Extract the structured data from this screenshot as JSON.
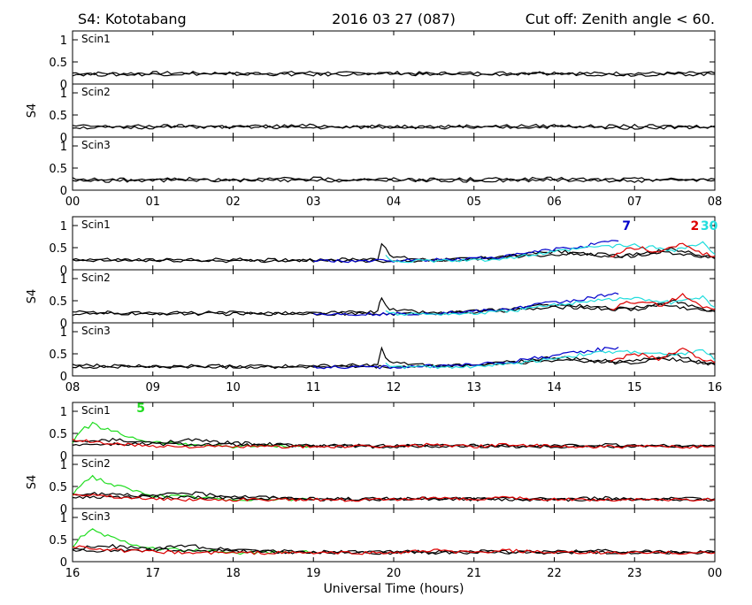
{
  "header": {
    "station": "S4: Kototabang",
    "date": "2016 03 27 (087)",
    "cutoff": "Cut off: Zenith angle < 60."
  },
  "chart_data": {
    "type": "line",
    "xlabel": "Universal Time (hours)",
    "ylabel": "S4",
    "ylim": [
      0,
      1.2
    ],
    "yticks": [
      "1",
      "0.5",
      "0"
    ],
    "panel_labels": [
      "Scin1",
      "Scin2",
      "Scin3"
    ],
    "colors": {
      "black": "#000000",
      "blue": "#0000cc",
      "red": "#dd0000",
      "cyan": "#22dddd",
      "green": "#22dd22"
    },
    "rows": [
      {
        "xlim": [
          0,
          8
        ],
        "xticks": [
          "00",
          "01",
          "02",
          "03",
          "04",
          "05",
          "06",
          "07",
          "08"
        ],
        "annotations": [],
        "series": [
          {
            "color": "black",
            "points": [
              [
                0,
                0.25
              ],
              [
                0.5,
                0.24
              ],
              [
                1,
                0.25
              ],
              [
                1.5,
                0.25
              ],
              [
                2,
                0.24
              ],
              [
                2.5,
                0.25
              ],
              [
                3,
                0.26
              ],
              [
                3.5,
                0.24
              ],
              [
                4,
                0.25
              ],
              [
                4.5,
                0.24
              ],
              [
                5,
                0.25
              ],
              [
                5.5,
                0.25
              ],
              [
                6,
                0.26
              ],
              [
                6.5,
                0.24
              ],
              [
                7,
                0.25
              ],
              [
                7.5,
                0.24
              ],
              [
                8,
                0.25
              ]
            ]
          },
          {
            "color": "black",
            "points": [
              [
                0,
                0.22
              ],
              [
                0.5,
                0.21
              ],
              [
                1,
                0.22
              ],
              [
                1.5,
                0.23
              ],
              [
                2,
                0.22
              ],
              [
                2.5,
                0.22
              ],
              [
                3,
                0.21
              ],
              [
                3.5,
                0.22
              ],
              [
                4,
                0.23
              ],
              [
                4.5,
                0.22
              ],
              [
                5,
                0.21
              ],
              [
                5.5,
                0.22
              ],
              [
                6,
                0.23
              ],
              [
                6.5,
                0.22
              ],
              [
                7,
                0.21
              ],
              [
                7.5,
                0.22
              ],
              [
                8,
                0.22
              ]
            ]
          }
        ]
      },
      {
        "xlim": [
          8,
          16
        ],
        "xticks": [
          "08",
          "09",
          "10",
          "11",
          "12",
          "13",
          "14",
          "15",
          "16"
        ],
        "annotations": [
          {
            "text": "7",
            "x": 14.9,
            "y": 0.9,
            "color": "blue"
          },
          {
            "text": "2",
            "x": 15.75,
            "y": 0.9,
            "color": "red"
          },
          {
            "text": "30",
            "x": 15.93,
            "y": 0.9,
            "color": "cyan"
          }
        ],
        "series": [
          {
            "color": "black",
            "points": [
              [
                8,
                0.24
              ],
              [
                9,
                0.22
              ],
              [
                10,
                0.23
              ],
              [
                11,
                0.22
              ],
              [
                11.8,
                0.25
              ],
              [
                11.85,
                0.6
              ],
              [
                11.95,
                0.3
              ],
              [
                12.5,
                0.22
              ],
              [
                13,
                0.26
              ],
              [
                13.5,
                0.32
              ],
              [
                14,
                0.42
              ],
              [
                14.5,
                0.35
              ],
              [
                15,
                0.3
              ],
              [
                15.5,
                0.48
              ],
              [
                15.8,
                0.32
              ],
              [
                16,
                0.28
              ]
            ]
          },
          {
            "color": "black",
            "points": [
              [
                8,
                0.2
              ],
              [
                9,
                0.21
              ],
              [
                10,
                0.2
              ],
              [
                11,
                0.21
              ],
              [
                12,
                0.2
              ],
              [
                13,
                0.24
              ],
              [
                13.6,
                0.3
              ],
              [
                14.2,
                0.36
              ],
              [
                14.8,
                0.3
              ],
              [
                15.3,
                0.42
              ],
              [
                15.7,
                0.32
              ],
              [
                16,
                0.25
              ]
            ]
          },
          {
            "color": "blue",
            "points": [
              [
                11,
                0.2
              ],
              [
                12,
                0.2
              ],
              [
                12.8,
                0.24
              ],
              [
                13.4,
                0.3
              ],
              [
                13.8,
                0.42
              ],
              [
                14.2,
                0.5
              ],
              [
                14.5,
                0.58
              ],
              [
                14.8,
                0.65
              ]
            ]
          },
          {
            "color": "cyan",
            "points": [
              [
                11.9,
                0.3
              ],
              [
                12,
                0.2
              ],
              [
                12.5,
                0.2
              ],
              [
                13,
                0.21
              ],
              [
                13.5,
                0.28
              ],
              [
                14,
                0.4
              ],
              [
                14.5,
                0.52
              ],
              [
                15,
                0.55
              ],
              [
                15.5,
                0.45
              ],
              [
                15.85,
                0.6
              ],
              [
                16,
                0.35
              ]
            ]
          },
          {
            "color": "red",
            "points": [
              [
                14.7,
                0.3
              ],
              [
                14.9,
                0.45
              ],
              [
                15.1,
                0.5
              ],
              [
                15.3,
                0.38
              ],
              [
                15.6,
                0.62
              ],
              [
                15.8,
                0.4
              ],
              [
                16,
                0.3
              ]
            ]
          }
        ]
      },
      {
        "xlim": [
          16,
          24
        ],
        "xticks": [
          "16",
          "17",
          "18",
          "19",
          "20",
          "21",
          "22",
          "23",
          "00"
        ],
        "annotations": [
          {
            "text": "5",
            "x": 16.85,
            "y": 0.98,
            "color": "green"
          }
        ],
        "series": [
          {
            "color": "green",
            "points": [
              [
                16,
                0.3
              ],
              [
                16.1,
                0.55
              ],
              [
                16.25,
                0.72
              ],
              [
                16.4,
                0.6
              ],
              [
                16.6,
                0.48
              ],
              [
                16.8,
                0.38
              ],
              [
                17,
                0.3
              ],
              [
                17.5,
                0.25
              ],
              [
                18,
                0.2
              ],
              [
                18.5,
                0.22
              ],
              [
                19,
                0.21
              ]
            ]
          },
          {
            "color": "black",
            "points": [
              [
                16,
                0.3
              ],
              [
                16.5,
                0.35
              ],
              [
                17,
                0.28
              ],
              [
                17.4,
                0.36
              ],
              [
                17.8,
                0.3
              ],
              [
                18.5,
                0.25
              ],
              [
                19,
                0.22
              ],
              [
                20,
                0.22
              ],
              [
                21,
                0.23
              ],
              [
                22,
                0.22
              ],
              [
                22.5,
                0.24
              ],
              [
                23,
                0.23
              ],
              [
                23.5,
                0.22
              ],
              [
                24,
                0.22
              ]
            ]
          },
          {
            "color": "black",
            "points": [
              [
                16,
                0.25
              ],
              [
                17,
                0.26
              ],
              [
                18,
                0.24
              ],
              [
                19,
                0.21
              ],
              [
                20,
                0.2
              ],
              [
                21,
                0.21
              ],
              [
                22,
                0.2
              ],
              [
                23,
                0.21
              ],
              [
                24,
                0.2
              ]
            ]
          },
          {
            "color": "red",
            "points": [
              [
                16,
                0.35
              ],
              [
                16.3,
                0.3
              ],
              [
                16.6,
                0.25
              ],
              [
                17,
                0.22
              ],
              [
                17.5,
                0.2
              ],
              [
                18,
                0.2
              ],
              [
                19,
                0.2
              ],
              [
                20,
                0.2
              ],
              [
                20.5,
                0.25
              ],
              [
                21,
                0.2
              ],
              [
                21.4,
                0.25
              ],
              [
                22,
                0.2
              ],
              [
                24,
                0.2
              ]
            ]
          }
        ]
      }
    ]
  }
}
